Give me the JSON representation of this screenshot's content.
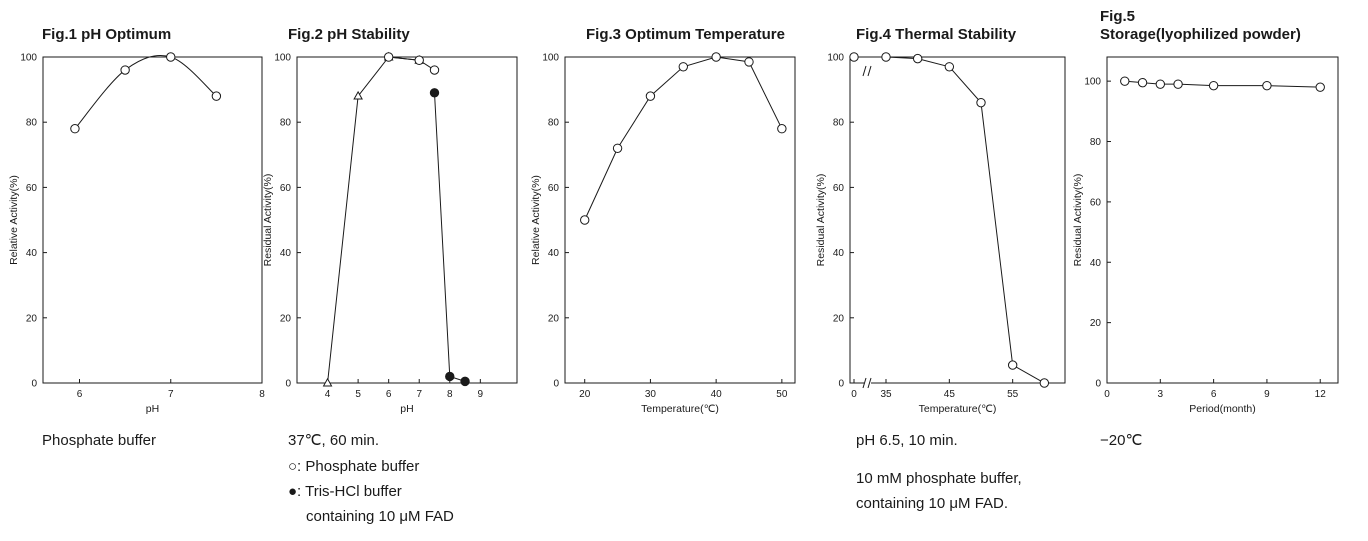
{
  "chart_data": [
    {
      "id": "fig1",
      "type": "line",
      "title": "Fig.1 pH Optimum",
      "xlabel": "pH",
      "ylabel": "Relative Activity(%)",
      "xlim": [
        5.6,
        8
      ],
      "ylim": [
        0,
        100
      ],
      "xticks": [
        6,
        7,
        8
      ],
      "yticks": [
        0,
        20,
        40,
        60,
        80,
        100
      ],
      "smooth": true,
      "series": [
        {
          "marker": "open-circle",
          "x": [
            5.95,
            6.5,
            7.0,
            7.5
          ],
          "y": [
            78,
            96,
            100,
            88
          ]
        }
      ],
      "caption": [
        "Phosphate buffer"
      ]
    },
    {
      "id": "fig2",
      "type": "line",
      "title": "Fig.2 pH Stability",
      "xlabel": "pH",
      "ylabel": "Residual Activity(%)",
      "xlim": [
        3,
        10.2
      ],
      "ylim": [
        0,
        100
      ],
      "xticks": [
        4,
        5,
        6,
        7,
        8,
        9
      ],
      "yticks": [
        0,
        20,
        40,
        60,
        80,
        100
      ],
      "series": [
        {
          "marker": "open-triangle",
          "x": [
            4.0,
            5.0,
            6.0,
            7.0
          ],
          "y": [
            0,
            88,
            100,
            99
          ]
        },
        {
          "marker": "open-circle",
          "x": [
            6.0,
            7.0,
            7.5
          ],
          "y": [
            100,
            99,
            96
          ]
        },
        {
          "marker": "filled-circle",
          "x": [
            7.5,
            8.0,
            8.5
          ],
          "y": [
            89,
            2,
            0.5
          ]
        }
      ],
      "caption": [
        "37℃, 60 min.",
        "○: Phosphate buffer",
        "●: Tris-HCl buffer",
        "containing 10 μM FAD"
      ]
    },
    {
      "id": "fig3",
      "type": "line",
      "title": "Fig.3 Optimum Temperature",
      "xlabel": "Temperature(℃)",
      "ylabel": "Relative Activity(%)",
      "xlim": [
        17,
        52
      ],
      "ylim": [
        0,
        100
      ],
      "xticks": [
        20,
        30,
        40,
        50
      ],
      "yticks": [
        0,
        20,
        40,
        60,
        80,
        100
      ],
      "series": [
        {
          "marker": "open-circle",
          "x": [
            20,
            25,
            30,
            35,
            40,
            45,
            50
          ],
          "y": [
            50,
            72,
            88,
            97,
            100,
            98.5,
            78
          ]
        }
      ],
      "caption": []
    },
    {
      "id": "fig4",
      "type": "line",
      "title": "Fig.4 Thermal Stability",
      "xlabel": "Temperature(℃)",
      "ylabel": "Residual Activity(%)",
      "xlim": [
        30,
        65
      ],
      "ylim": [
        0,
        100
      ],
      "xticks": [
        0,
        35,
        45,
        55
      ],
      "yticks": [
        0,
        20,
        40,
        60,
        80,
        100
      ],
      "axis_break": true,
      "series": [
        {
          "marker": "open-circle",
          "x": [
            0,
            35,
            40,
            45,
            50,
            55,
            60
          ],
          "y": [
            100,
            100,
            99.5,
            97,
            86,
            5.5,
            0
          ]
        }
      ],
      "caption": [
        "pH 6.5, 10 min.",
        "10 mM phosphate buffer,",
        "containing 10 μM FAD."
      ]
    },
    {
      "id": "fig5",
      "type": "line",
      "title": "Fig.5",
      "subtitle": "Storage(lyophilized powder)",
      "xlabel": "Period(month)",
      "ylabel": "Residual Activity(%)",
      "xlim": [
        0,
        13
      ],
      "ylim": [
        0,
        108
      ],
      "xticks": [
        0,
        3,
        6,
        9,
        12
      ],
      "yticks": [
        0,
        20,
        40,
        60,
        80,
        100
      ],
      "series": [
        {
          "marker": "open-circle",
          "x": [
            1,
            2,
            3,
            4,
            6,
            9,
            12
          ],
          "y": [
            100,
            99.5,
            99,
            99,
            98.5,
            98.5,
            98
          ]
        }
      ],
      "caption": [
        "−20℃"
      ]
    }
  ]
}
